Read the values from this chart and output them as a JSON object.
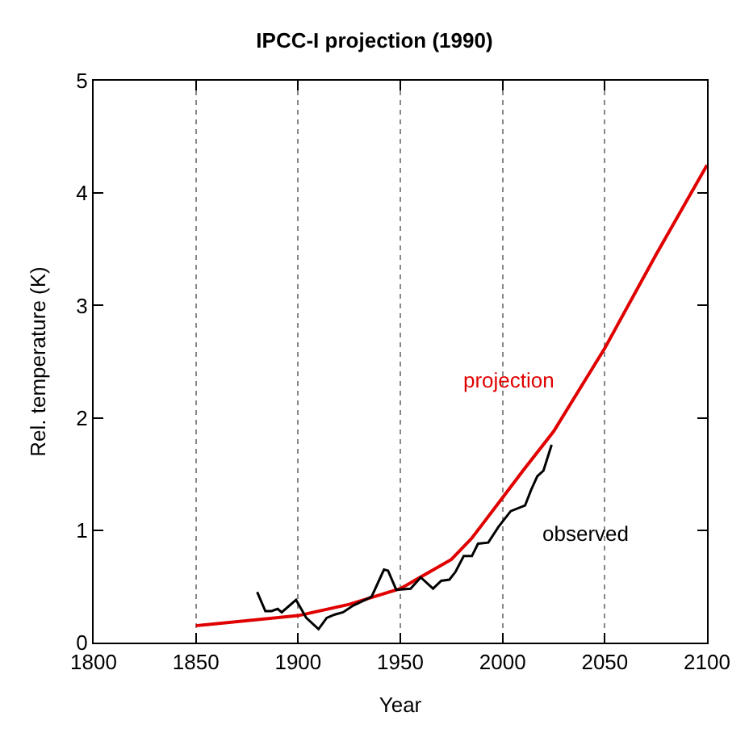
{
  "chart_data": {
    "type": "line",
    "title": "IPCC-I projection (1990)",
    "xlabel": "Year",
    "ylabel": "Rel. temperature (K)",
    "xlim": [
      1800,
      2100
    ],
    "xticks": [
      1800,
      1850,
      1900,
      1950,
      2000,
      2050,
      2100
    ],
    "ylim": [
      0,
      5
    ],
    "yticks": [
      0,
      1,
      2,
      3,
      4,
      5
    ],
    "grid": "x",
    "legend": false,
    "line_style": "solid",
    "marker": "none",
    "series": [
      {
        "name": "projection",
        "color": "#e00000",
        "x": [
          1850,
          1900,
          1925,
          1950,
          1975,
          1985,
          1990,
          2000,
          2010,
          2025,
          2050,
          2075,
          2100
        ],
        "values": [
          0.15,
          0.24,
          0.34,
          0.48,
          0.74,
          0.93,
          1.05,
          1.29,
          1.53,
          1.88,
          2.62,
          3.45,
          4.25
        ]
      },
      {
        "name": "observed",
        "color": "#000000",
        "x": [
          1880,
          1884,
          1887,
          1890,
          1892,
          1899,
          1904,
          1910,
          1914,
          1918,
          1922,
          1927,
          1934,
          1936,
          1942,
          1944,
          1948,
          1955,
          1960,
          1966,
          1970,
          1974,
          1977,
          1981,
          1985,
          1988,
          1993,
          1998,
          2004,
          2011,
          2014,
          2017,
          2020,
          2024
        ],
        "values": [
          0.45,
          0.28,
          0.28,
          0.3,
          0.27,
          0.38,
          0.22,
          0.12,
          0.22,
          0.25,
          0.27,
          0.33,
          0.39,
          0.41,
          0.65,
          0.64,
          0.47,
          0.48,
          0.58,
          0.48,
          0.55,
          0.56,
          0.63,
          0.77,
          0.77,
          0.88,
          0.89,
          1.03,
          1.17,
          1.22,
          1.36,
          1.48,
          1.53,
          1.76
        ]
      }
    ]
  }
}
